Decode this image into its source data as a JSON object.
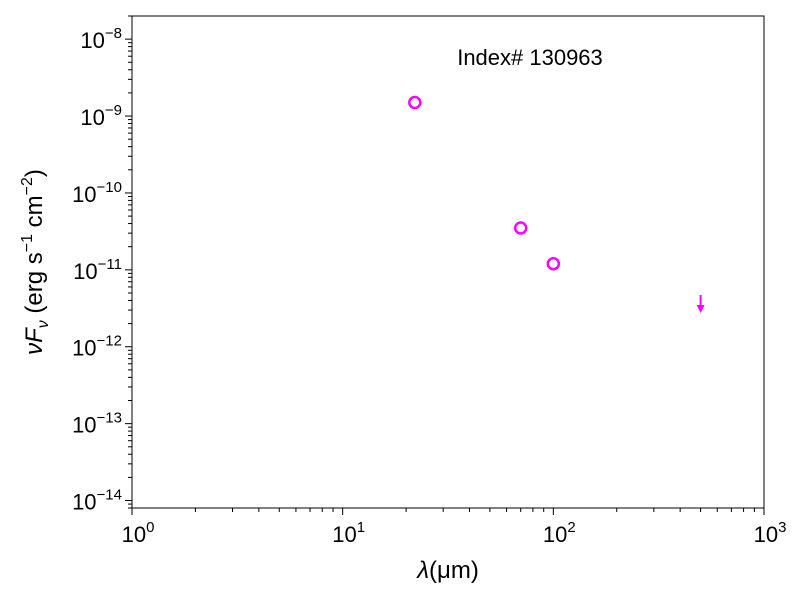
{
  "chart_data": {
    "type": "scatter",
    "xscale": "log",
    "yscale": "log",
    "xlim": [
      1,
      1000
    ],
    "ylim": [
      8e-15,
      2e-08
    ],
    "xlabel_symbol": "λ",
    "xlabel_unit": "(μm)",
    "ylabel": {
      "main": "νF",
      "sub": "ν",
      "unit_open": " (erg s",
      "exp1": "−1",
      "mid": " cm",
      "exp2": "−2",
      "close": ")"
    },
    "annotation": "Index# 130963",
    "x_ticks": [
      {
        "value": 1,
        "base": "10",
        "exp": "0"
      },
      {
        "value": 10,
        "base": "10",
        "exp": "1"
      },
      {
        "value": 100,
        "base": "10",
        "exp": "2"
      },
      {
        "value": 1000,
        "base": "10",
        "exp": "3"
      }
    ],
    "y_ticks": [
      {
        "value": 1e-14,
        "base": "10",
        "exp": "−14"
      },
      {
        "value": 1e-13,
        "base": "10",
        "exp": "−13"
      },
      {
        "value": 1e-12,
        "base": "10",
        "exp": "−12"
      },
      {
        "value": 1e-11,
        "base": "10",
        "exp": "−11"
      },
      {
        "value": 1e-10,
        "base": "10",
        "exp": "−10"
      },
      {
        "value": 1e-09,
        "base": "10",
        "exp": "−9"
      },
      {
        "value": 1e-08,
        "base": "10",
        "exp": "−8"
      }
    ],
    "points": [
      {
        "x": 22,
        "y": 1.5e-09,
        "kind": "detection"
      },
      {
        "x": 70,
        "y": 3.5e-11,
        "kind": "detection"
      },
      {
        "x": 100,
        "y": 1.2e-11,
        "kind": "detection"
      }
    ],
    "upper_limits": [
      {
        "x": 500,
        "y": 3e-12
      }
    ],
    "marker_color": "#ff00ff",
    "grid": false
  }
}
